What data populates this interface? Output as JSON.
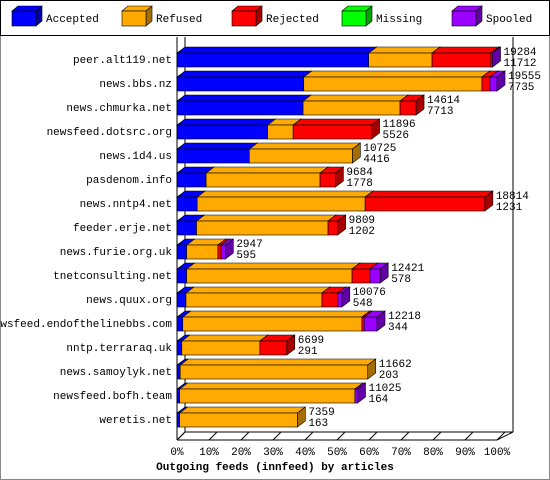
{
  "chart_data": {
    "type": "bar3d_stacked_horizontal",
    "x_label": "Outgoing feeds (innfeed) by articles",
    "categories": [
      "peer.alt119.net",
      "news.bbs.nz",
      "news.chmurka.net",
      "newsfeed.dotsrc.org",
      "news.1d4.us",
      "pasdenom.info",
      "news.nntp4.net",
      "feeder.erje.net",
      "news.furie.org.uk",
      "tnetconsulting.net",
      "news.quux.org",
      "newsfeed.endofthelinebbs.com",
      "nntp.terraraq.uk",
      "news.samoylyk.net",
      "newsfeed.bofh.team",
      "weretis.net"
    ],
    "series": [
      {
        "name": "Accepted",
        "color": "#0000ff",
        "values": [
          59.9,
          39.6,
          39.4,
          28.3,
          22.6,
          9.1,
          6.3,
          6.1,
          3.0,
          3.0,
          2.8,
          1.8,
          1.5,
          1.0,
          0.8,
          0.8
        ]
      },
      {
        "name": "Refused",
        "color": "#ffaa00",
        "values": [
          19.8,
          55.7,
          30.3,
          8.0,
          32.2,
          35.6,
          52.5,
          41.1,
          9.8,
          51.7,
          42.5,
          56.0,
          24.4,
          58.6,
          54.8,
          36.8
        ]
      },
      {
        "name": "Rejected",
        "color": "#ff0000",
        "values": [
          18.4,
          2.5,
          5.0,
          24.5,
          0,
          4.8,
          37.4,
          3.0,
          1.0,
          5.6,
          5.0,
          0.7,
          8.4,
          0,
          0,
          0
        ]
      },
      {
        "name": "Missing",
        "color": "#00ff00",
        "values": [
          0,
          0,
          0,
          0,
          0,
          0,
          0,
          0,
          0,
          0,
          0,
          0,
          0,
          0,
          0,
          0
        ]
      },
      {
        "name": "Spooled",
        "color": "#9900ff",
        "values": [
          0.5,
          2.2,
          0,
          0,
          0,
          0,
          0,
          0,
          1.3,
          3.2,
          1.2,
          4.0,
          0,
          0,
          0.8,
          0
        ]
      }
    ],
    "articles_total": [
      19284,
      19555,
      14614,
      11896,
      10725,
      9684,
      18814,
      9809,
      2947,
      12421,
      10076,
      12218,
      6699,
      11662,
      11025,
      7359
    ],
    "articles_accepted": [
      11712,
      7735,
      7713,
      5526,
      4416,
      1778,
      1231,
      1202,
      595,
      578,
      548,
      344,
      291,
      203,
      164,
      163
    ],
    "xlim": [
      0,
      100
    ],
    "xticks": [
      {
        "value": 0,
        "label": "0%"
      },
      {
        "value": 10,
        "label": "10%"
      },
      {
        "value": 20,
        "label": "20%"
      },
      {
        "value": 30,
        "label": "30%"
      },
      {
        "value": 40,
        "label": "40%"
      },
      {
        "value": 50,
        "label": "50%"
      },
      {
        "value": 60,
        "label": "60%"
      },
      {
        "value": 70,
        "label": "70%"
      },
      {
        "value": 80,
        "label": "80%"
      },
      {
        "value": 90,
        "label": "90%"
      },
      {
        "value": 100,
        "label": "100%"
      }
    ]
  }
}
